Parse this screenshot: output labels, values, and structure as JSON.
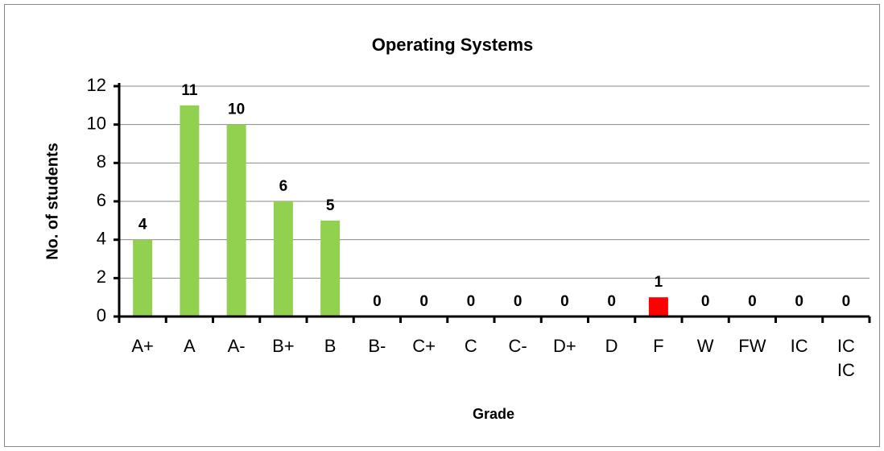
{
  "chart_data": {
    "type": "bar",
    "title": "Operating Systems",
    "x_label": "Grade",
    "y_label": "No. of students",
    "categories": [
      "A+",
      "A",
      "A-",
      "B+",
      "B",
      "B-",
      "C+",
      "C",
      "C-",
      "D+",
      "D",
      "F",
      "W",
      "FW",
      "IC",
      "IC IC"
    ],
    "values": [
      4,
      11,
      10,
      6,
      5,
      0,
      0,
      0,
      0,
      0,
      0,
      1,
      0,
      0,
      0,
      0
    ],
    "colors": [
      "#92d050",
      "#92d050",
      "#92d050",
      "#92d050",
      "#92d050",
      "#92d050",
      "#92d050",
      "#92d050",
      "#92d050",
      "#92d050",
      "#92d050",
      "#ff0000",
      "#92d050",
      "#92d050",
      "#92d050",
      "#92d050"
    ],
    "ylim": [
      0,
      12
    ],
    "yticks": [
      0,
      2,
      4,
      6,
      8,
      10,
      12
    ],
    "grid": true
  }
}
